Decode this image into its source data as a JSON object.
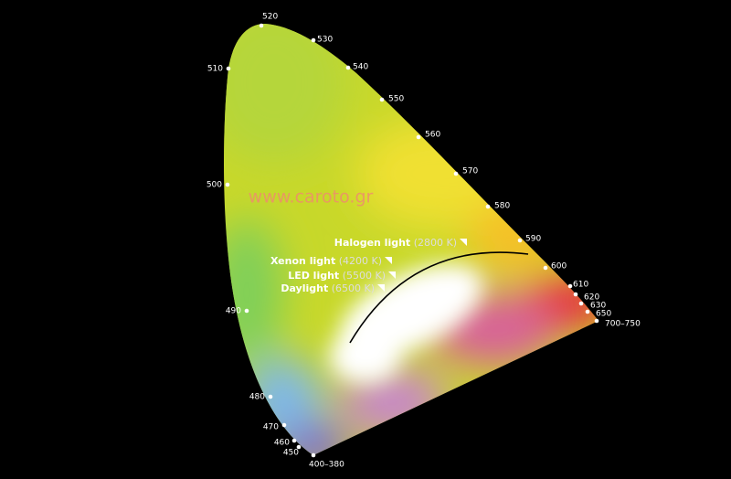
{
  "watermark": "www.caroto.gr",
  "wavelengths": [
    "520",
    "530",
    "540",
    "550",
    "560",
    "570",
    "580",
    "590",
    "600",
    "610",
    "620",
    "630",
    "650",
    "700–750",
    "510",
    "500",
    "490",
    "480",
    "470",
    "460",
    "450",
    "400–380"
  ],
  "light_sources": [
    {
      "name": "Halogen light",
      "temperature": "(2800 K)"
    },
    {
      "name": "Xenon light",
      "temperature": "(4200 K)"
    },
    {
      "name": "LED light",
      "temperature": "(5500 K)"
    },
    {
      "name": "Daylight",
      "temperature": "(6500 K)"
    }
  ]
}
